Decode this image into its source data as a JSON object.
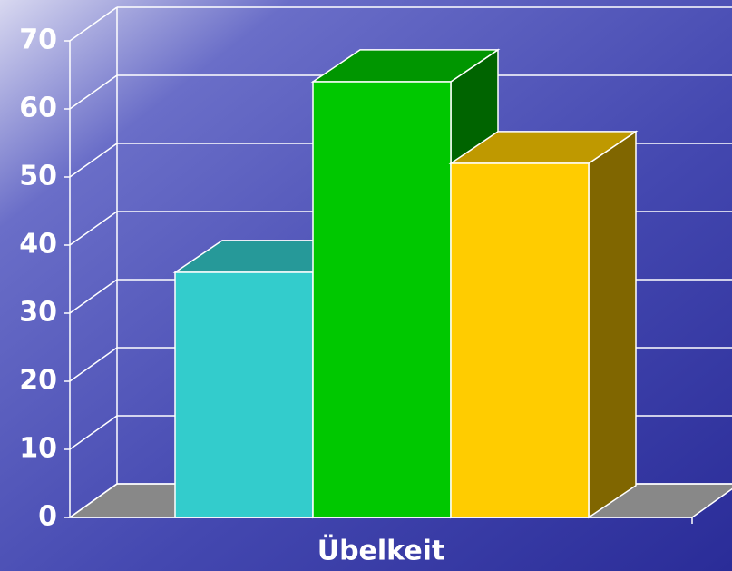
{
  "chart_data": {
    "type": "bar3d",
    "categories": [
      "Übelkeit"
    ],
    "series": [
      {
        "color": "#33cccc",
        "values": [
          36
        ]
      },
      {
        "color": "#00c800",
        "values": [
          64
        ]
      },
      {
        "color": "#ffcc00",
        "values": [
          52
        ]
      }
    ],
    "ylim": [
      0,
      70
    ],
    "yticks": [
      0,
      10,
      20,
      30,
      40,
      50,
      60,
      70
    ],
    "grid": true
  }
}
